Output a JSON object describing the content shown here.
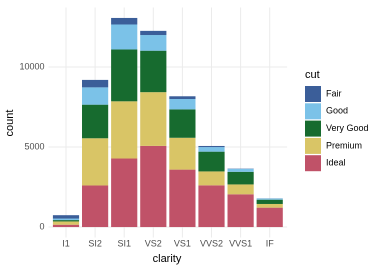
{
  "chart_data": {
    "type": "stacked_bar",
    "x_label": "clarity",
    "y_label": "count",
    "legend_title": "cut",
    "categories": [
      "I1",
      "SI2",
      "SI1",
      "VS2",
      "VS1",
      "VVS2",
      "VVS1",
      "IF"
    ],
    "series": [
      {
        "name": "Fair",
        "color": "#3b5e99",
        "values": [
          210,
          466,
          408,
          261,
          170,
          69,
          17,
          9
        ]
      },
      {
        "name": "Good",
        "color": "#7bc2e8",
        "values": [
          96,
          1081,
          1560,
          978,
          648,
          286,
          186,
          71
        ]
      },
      {
        "name": "Very Good",
        "color": "#176b2f",
        "values": [
          84,
          2100,
          3240,
          2591,
          1775,
          1235,
          789,
          268
        ]
      },
      {
        "name": "Premium",
        "color": "#d9c566",
        "values": [
          205,
          2949,
          3575,
          3357,
          1989,
          870,
          616,
          230
        ]
      },
      {
        "name": "Ideal",
        "color": "#c05268",
        "values": [
          146,
          2598,
          4282,
          5071,
          3589,
          2606,
          2047,
          1212
        ]
      }
    ],
    "ylim": [
      -653,
      13718
    ],
    "yticks": [
      0,
      5000,
      10000
    ],
    "grid": true
  }
}
